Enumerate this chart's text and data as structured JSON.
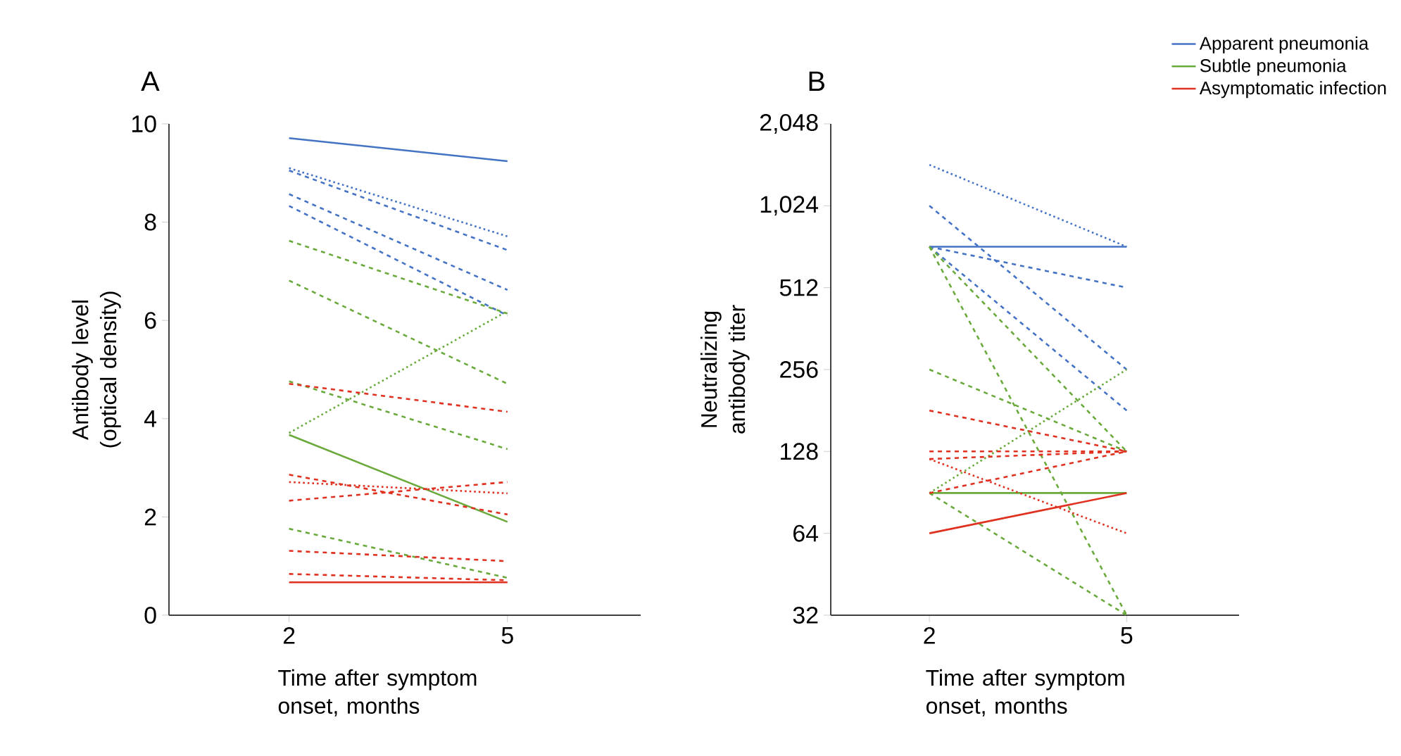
{
  "chart_data": [
    {
      "type": "line",
      "title": "A",
      "xlabel": "Time after symptom onset, months",
      "ylabel": "Antibody level (optical density)",
      "categories": [
        "2",
        "5"
      ],
      "ylim": [
        0,
        10
      ],
      "yticks": [
        0,
        2,
        4,
        6,
        8,
        10
      ],
      "series": [
        {
          "color": "#4472c4",
          "line_style": "solid",
          "values": [
            9.71,
            9.24
          ]
        },
        {
          "color": "#4472c4",
          "line_style": "dotted",
          "values": [
            9.1,
            7.71
          ]
        },
        {
          "color": "#4472c4",
          "line_style": "dashed",
          "values": [
            9.05,
            7.43
          ]
        },
        {
          "color": "#4472c4",
          "line_style": "dashed",
          "values": [
            8.57,
            6.62
          ]
        },
        {
          "color": "#4472c4",
          "line_style": "dashed",
          "values": [
            8.33,
            6.1
          ]
        },
        {
          "color": "#6aaa3c",
          "line_style": "dashed",
          "values": [
            7.62,
            6.14
          ]
        },
        {
          "color": "#6aaa3c",
          "line_style": "dashed",
          "values": [
            6.81,
            4.71
          ]
        },
        {
          "color": "#6aaa3c",
          "line_style": "dotted",
          "values": [
            3.71,
            6.19
          ]
        },
        {
          "color": "#6aaa3c",
          "line_style": "dashed",
          "values": [
            4.76,
            3.38
          ]
        },
        {
          "color": "#6aaa3c",
          "line_style": "solid",
          "values": [
            3.67,
            1.9
          ]
        },
        {
          "color": "#6aaa3c",
          "line_style": "dashed",
          "values": [
            1.76,
            0.76
          ]
        },
        {
          "color": "#e03020",
          "line_style": "dashed",
          "values": [
            4.71,
            4.14
          ]
        },
        {
          "color": "#e03020",
          "line_style": "dashed",
          "values": [
            2.86,
            2.05
          ]
        },
        {
          "color": "#e03020",
          "line_style": "dotted",
          "values": [
            2.71,
            2.48
          ]
        },
        {
          "color": "#e03020",
          "line_style": "dashed",
          "values": [
            2.33,
            2.71
          ]
        },
        {
          "color": "#e03020",
          "line_style": "dashed",
          "values": [
            1.31,
            1.1
          ]
        },
        {
          "color": "#e03020",
          "line_style": "dashed",
          "values": [
            0.84,
            0.71
          ]
        },
        {
          "color": "#e03020",
          "line_style": "solid",
          "values": [
            0.67,
            0.67
          ]
        }
      ]
    },
    {
      "type": "line",
      "title": "B",
      "xlabel": "Time after symptom onset, months",
      "ylabel": "Neutralizing antibody titer",
      "categories": [
        "2",
        "5"
      ],
      "log": true,
      "legend": "top right",
      "ylim": [
        32,
        2048
      ],
      "yticks": [
        32,
        64,
        128,
        256,
        512,
        {
          "value": 1024,
          "label": "1,024"
        },
        {
          "value": 2048,
          "label": "2,048"
        }
      ],
      "series": [
        {
          "name": "Apparent pneumonia",
          "color": "#4472c4",
          "line_style": "solid",
          "values": [
            724,
            724
          ]
        },
        {
          "color": "#4472c4",
          "line_style": "dotted",
          "values": [
            1448,
            724
          ]
        },
        {
          "color": "#4472c4",
          "line_style": "dashed",
          "values": [
            1024,
            256
          ]
        },
        {
          "color": "#4472c4",
          "line_style": "dashed",
          "values": [
            724,
            512
          ]
        },
        {
          "color": "#4472c4",
          "line_style": "dashed",
          "values": [
            724,
            181
          ]
        },
        {
          "name": "Subtle pneumonia",
          "color": "#6aaa3c",
          "line_style": "solid",
          "values": [
            90,
            90
          ]
        },
        {
          "color": "#6aaa3c",
          "line_style": "dashed",
          "values": [
            256,
            128
          ]
        },
        {
          "color": "#6aaa3c",
          "line_style": "dashed",
          "values": [
            724,
            128
          ]
        },
        {
          "color": "#6aaa3c",
          "line_style": "dashed",
          "values": [
            724,
            32
          ]
        },
        {
          "color": "#6aaa3c",
          "line_style": "dotted",
          "values": [
            90,
            256
          ]
        },
        {
          "color": "#6aaa3c",
          "line_style": "dashed",
          "values": [
            90,
            32
          ]
        },
        {
          "name": "Asymptomatic infection",
          "color": "#e03020",
          "line_style": "solid",
          "values": [
            64,
            90
          ]
        },
        {
          "color": "#e03020",
          "line_style": "dashed",
          "values": [
            181,
            128
          ]
        },
        {
          "color": "#e03020",
          "line_style": "dashed",
          "values": [
            128,
            128
          ]
        },
        {
          "color": "#e03020",
          "line_style": "dashed",
          "values": [
            120,
            128
          ]
        },
        {
          "color": "#e03020",
          "line_style": "dashed",
          "values": [
            90,
            128
          ]
        },
        {
          "color": "#e03020",
          "line_style": "dotted",
          "values": [
            120,
            64
          ]
        }
      ]
    }
  ]
}
